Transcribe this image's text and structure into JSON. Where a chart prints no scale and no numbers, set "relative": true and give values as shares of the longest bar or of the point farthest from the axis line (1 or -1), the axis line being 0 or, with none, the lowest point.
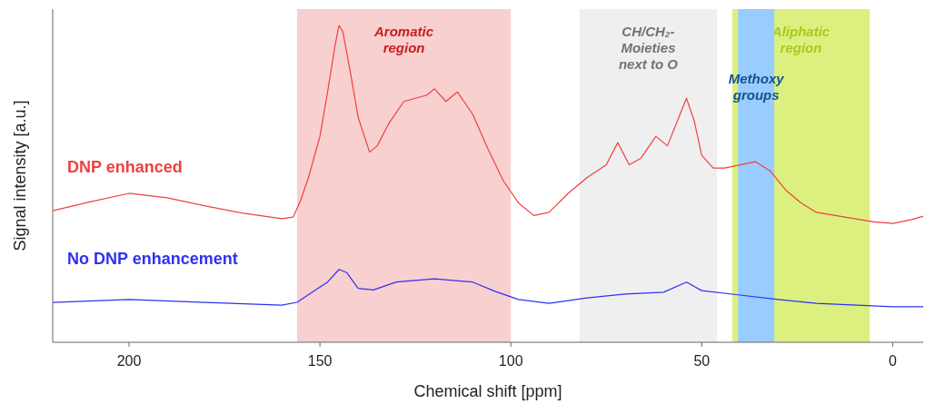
{
  "chart_data": {
    "type": "line",
    "xlabel": "Chemical shift [ppm]",
    "ylabel": "Signal intensity [a.u.]",
    "relative": true,
    "legend": false,
    "grid": false,
    "xlim": [
      220,
      -8
    ],
    "xticks": [
      200,
      150,
      100,
      50,
      0
    ],
    "bands": [
      {
        "axis": "x",
        "from": 156,
        "to": 100,
        "label": "Aromatic\nregion",
        "color": "#f8d0d0"
      },
      {
        "axis": "x",
        "from": 82,
        "to": 46,
        "label": "CH/CH₂-\nMoieties\nnext to O",
        "color": "#efefef"
      },
      {
        "axis": "x",
        "from": 42,
        "to": 6,
        "label": "Aliphatic\nregion",
        "color": "#dcf080"
      },
      {
        "axis": "x",
        "from": 40.5,
        "to": 31,
        "label": "Methoxy\ngroups",
        "color": "#99ccff"
      }
    ],
    "series": [
      {
        "name": "DNP enhanced",
        "color": "#f04040",
        "x": [
          220,
          210,
          200,
          190,
          180,
          170,
          160,
          157,
          155,
          153,
          150,
          148,
          146,
          145,
          144,
          142,
          140,
          137,
          135,
          132,
          128,
          122,
          120,
          117,
          114,
          110,
          106,
          102,
          98,
          94,
          90,
          85,
          80,
          75,
          72,
          69,
          66,
          62,
          59,
          57,
          54,
          52,
          50,
          47,
          44,
          40,
          36,
          32,
          28,
          24,
          20,
          15,
          10,
          5,
          0,
          -5,
          -8
        ],
        "values": [
          0.415,
          0.444,
          0.47,
          0.456,
          0.43,
          0.407,
          0.39,
          0.395,
          0.45,
          0.52,
          0.65,
          0.79,
          0.94,
          1.0,
          0.98,
          0.85,
          0.71,
          0.6,
          0.62,
          0.69,
          0.76,
          0.78,
          0.8,
          0.76,
          0.79,
          0.72,
          0.61,
          0.51,
          0.44,
          0.4,
          0.41,
          0.47,
          0.52,
          0.56,
          0.63,
          0.56,
          0.58,
          0.65,
          0.62,
          0.68,
          0.77,
          0.7,
          0.59,
          0.55,
          0.55,
          0.56,
          0.57,
          0.54,
          0.48,
          0.44,
          0.41,
          0.4,
          0.39,
          0.38,
          0.375,
          0.387,
          0.398
        ]
      },
      {
        "name": "No DNP enhancement",
        "color": "#3030f0",
        "x": [
          220,
          200,
          180,
          160,
          156,
          152,
          148,
          145,
          143,
          140,
          136,
          130,
          120,
          110,
          104,
          98,
          90,
          80,
          70,
          60,
          54,
          50,
          40,
          30,
          20,
          0,
          -8
        ],
        "values": [
          0.126,
          0.135,
          0.126,
          0.117,
          0.126,
          0.158,
          0.19,
          0.23,
          0.22,
          0.17,
          0.165,
          0.19,
          0.2,
          0.19,
          0.16,
          0.135,
          0.123,
          0.14,
          0.152,
          0.158,
          0.19,
          0.163,
          0.149,
          0.135,
          0.123,
          0.112,
          0.112
        ]
      }
    ]
  }
}
